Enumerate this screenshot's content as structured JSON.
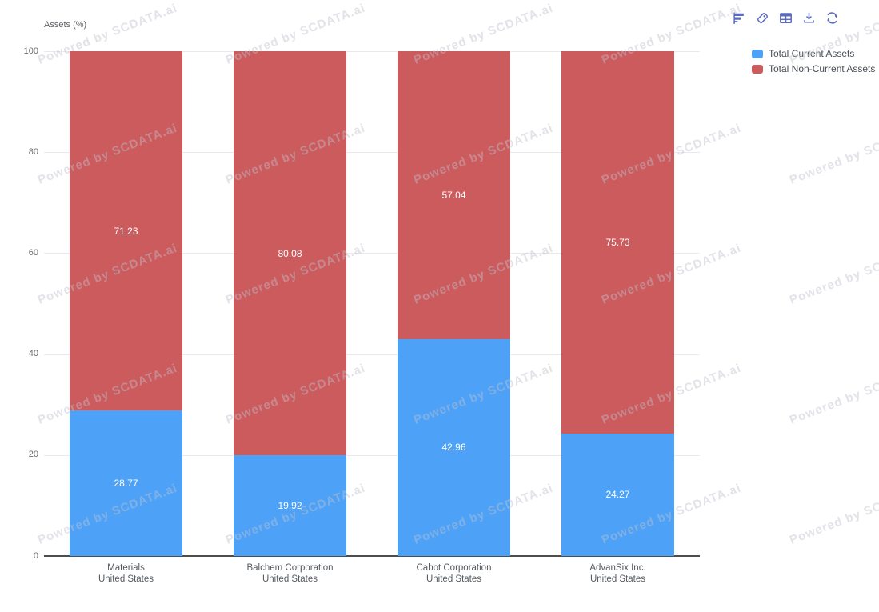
{
  "watermark": {
    "text": "Powered by SCDATA.ai"
  },
  "colors": {
    "current_assets": "#4da2f8",
    "non_current_assets": "#cc5b5e",
    "toolbar_icon": "#5a6abf",
    "gridline": "#e8e8ed",
    "axis_line": "#4d4d4d"
  },
  "toolbar": {
    "icons": [
      {
        "name": "horizontal-bar-chart-icon"
      },
      {
        "name": "tag-icon"
      },
      {
        "name": "data-table-icon"
      },
      {
        "name": "download-icon"
      },
      {
        "name": "refresh-icon"
      }
    ]
  },
  "legend": {
    "items": [
      {
        "label": "Total Current Assets",
        "color": "#4da2f8"
      },
      {
        "label": "Total Non-Current Assets",
        "color": "#cc5b5e"
      }
    ]
  },
  "chart_data": {
    "type": "bar",
    "stacked": true,
    "title": "",
    "ylabel": "Assets (%)",
    "xlabel": "",
    "ylim": [
      0,
      100
    ],
    "yticks": [
      0,
      20,
      40,
      60,
      80,
      100
    ],
    "grid": true,
    "legend_position": "top-right",
    "categories": [
      [
        "Materials",
        "United States"
      ],
      [
        "Balchem Corporation",
        "United States"
      ],
      [
        "Cabot Corporation",
        "United States"
      ],
      [
        "AdvanSix Inc.",
        "United States"
      ]
    ],
    "series": [
      {
        "name": "Total Current Assets",
        "color": "#4da2f8",
        "values": [
          28.77,
          19.92,
          42.96,
          24.27
        ]
      },
      {
        "name": "Total Non-Current Assets",
        "color": "#cc5b5e",
        "values": [
          71.23,
          80.08,
          57.04,
          75.73
        ]
      }
    ]
  }
}
